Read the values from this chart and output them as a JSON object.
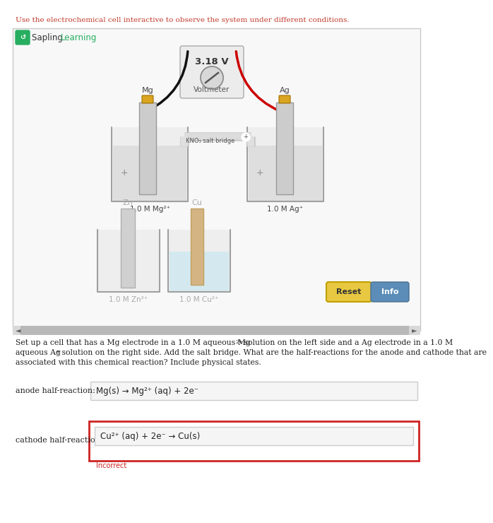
{
  "title_text": "Use the electrochemical cell interactive to observe the system under different conditions.",
  "title_color": "#c0392b",
  "sapling_green": "#27ae60",
  "voltmeter_voltage": "3.18 V",
  "voltmeter_label": "Voltmeter",
  "salt_bridge_label": "KNO₃ salt bridge",
  "left_electrode": "Mg",
  "right_electrode": "Ag",
  "left_solution": "1.0 M Mg²⁺",
  "right_solution": "1.0 M Ag⁺",
  "bottom_left_electrode": "Zn",
  "bottom_left_solution": "1.0 M Zn²⁺",
  "bottom_right_electrode": "Cu",
  "bottom_right_solution": "1.0 M Cu²⁺",
  "reset_btn_color": "#e8c840",
  "info_btn_color": "#5b8db8",
  "reset_label": "Reset",
  "info_label": "Info",
  "question_line1": "Set up a cell that has a Mg electrode in a 1.0 M aqueous Mg",
  "question_line1b": "2+",
  "question_line1c": " solution on the left side and a Ag electrode in a 1.0 M",
  "question_line2": "aqueous Ag",
  "question_line2b": "+",
  "question_line2c": " solution on the right side. Add the salt bridge. What are the half-reactions for the anode and cathode that are",
  "question_line3": "associated with this chemical reaction? Include physical states.",
  "anode_label": "anode half-reaction:",
  "anode_reaction": "Mg(s) → Mg²⁺ (aq) + 2e⁻",
  "cathode_label": "cathode half-reaction:",
  "cathode_reaction": "Cu²⁺ (aq) + 2e⁻ → Cu(s)",
  "incorrect_text": "Incorrect",
  "bg_color": "#ffffff",
  "panel_bg": "#f8f8f8",
  "cathode_box_border": "#cc2222",
  "text_dark": "#222222",
  "text_gray": "#666666",
  "wire_black": "#111111",
  "wire_red": "#cc0000",
  "electrode_gray": "#c0c0c0",
  "beaker_fill": "#e0e0e0",
  "liquid_gray": "#d8d8d8",
  "liquid_blue": "#c8e8f0",
  "connector_gold": "#DAA520"
}
